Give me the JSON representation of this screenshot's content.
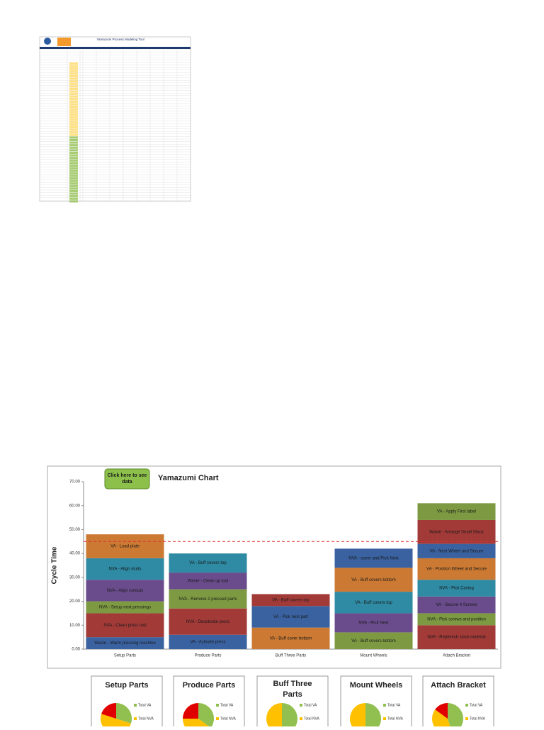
{
  "spreadsheet": {
    "title": "Yamazumi Process Modeling Tool"
  },
  "chart_data": [
    {
      "type": "stacked-bar",
      "title": "Yamazumi Chart",
      "button": "Click here to see data",
      "y_label": "Cycle Time",
      "categories": [
        "Setup Parts",
        "Produce Parts",
        "Buff Three Parts",
        "Mount Wheels",
        "Attach Bracket"
      ],
      "stacks": [
        [
          {
            "label": "Waste - Warm pressing machine",
            "value": 5,
            "color": "#3a62a0"
          },
          {
            "label": "NVA - Clean press tool",
            "value": 10,
            "color": "#a23a38"
          },
          {
            "label": "NVA - Setup next pressings",
            "value": 5,
            "color": "#7d9a42"
          },
          {
            "label": "NVA - Align runouts",
            "value": 9,
            "color": "#6a4c8c"
          },
          {
            "label": "NVA - Align studs",
            "value": 9,
            "color": "#2f8aa3"
          },
          {
            "label": "VA - Load plate",
            "value": 10,
            "color": "#cc7a33"
          }
        ],
        [
          {
            "label": "VA - Activate press",
            "value": 6,
            "color": "#3a62a0"
          },
          {
            "label": "NVA - Deactivate press",
            "value": 11,
            "color": "#a23a38"
          },
          {
            "label": "NVA - Remove 2 pressed parts",
            "value": 8,
            "color": "#7d9a42"
          },
          {
            "label": "Waste - Clean up tool",
            "value": 7,
            "color": "#6a4c8c"
          },
          {
            "label": "VA - Buff covers top",
            "value": 8,
            "color": "#2f8aa3"
          }
        ],
        [
          {
            "label": "VA - Buff cover bottom",
            "value": 9,
            "color": "#cc7a33"
          },
          {
            "label": "VA - Pick next part",
            "value": 9,
            "color": "#3a62a0"
          },
          {
            "label": "VA - Buff covers top",
            "value": 5,
            "color": "#a23a38"
          }
        ],
        [
          {
            "label": "VA - Buff covers bottom",
            "value": 7,
            "color": "#7d9a42"
          },
          {
            "label": "NVA - Pick Next",
            "value": 8,
            "color": "#6a4c8c"
          },
          {
            "label": "VA - Buff covers top",
            "value": 9,
            "color": "#2f8aa3"
          },
          {
            "label": "VA - Buff covers bottom",
            "value": 10,
            "color": "#cc7a33"
          },
          {
            "label": "NVA - cover and Pick Next",
            "value": 8,
            "color": "#3a62a0"
          }
        ],
        [
          {
            "label": "NVA - Replenish stock material",
            "value": 10,
            "color": "#a23a38"
          },
          {
            "label": "NVA - Pick screws and position",
            "value": 5,
            "color": "#7d9a42"
          },
          {
            "label": "VA - Secure 4 Screws",
            "value": 7,
            "color": "#6a4c8c"
          },
          {
            "label": "NVA - Pick Casing",
            "value": 7,
            "color": "#2f8aa3"
          },
          {
            "label": "VA - Position Wheel and Secure",
            "value": 9,
            "color": "#cc7a33"
          },
          {
            "label": "VA - Nest Wheel and Secure",
            "value": 6,
            "color": "#3a62a0"
          },
          {
            "label": "Waste - Arrange Small Stack",
            "value": 10,
            "color": "#a23a38"
          },
          {
            "label": "VA - Apply First label",
            "value": 7,
            "color": "#7d9a42"
          }
        ]
      ],
      "takt": 45,
      "takt_color": "#e03030",
      "ylim": [
        0,
        70
      ],
      "yticks": [
        {
          "value": 0,
          "label": "0.00"
        },
        {
          "value": 10,
          "label": "10.00"
        },
        {
          "value": 20,
          "label": "20.00"
        },
        {
          "value": 30,
          "label": "30.00"
        },
        {
          "value": 40,
          "label": "40.00"
        },
        {
          "value": 50,
          "label": "50.00"
        },
        {
          "value": 60,
          "label": "60.00"
        },
        {
          "value": 70,
          "label": "70.00"
        }
      ]
    },
    {
      "type": "pie",
      "title": "Setup Parts",
      "labels": [
        "Total VA",
        "Total NVA",
        null
      ],
      "values": [
        30,
        50,
        20
      ],
      "colors": [
        "#92c050",
        "#ffc000",
        "#e00000"
      ]
    },
    {
      "type": "pie",
      "title": "Produce Parts",
      "labels": [
        "Total VA",
        "Total NVA",
        null
      ],
      "values": [
        35,
        40,
        25
      ],
      "colors": [
        "#92c050",
        "#ffc000",
        "#e00000"
      ]
    },
    {
      "type": "pie",
      "title": "Buff Three Parts",
      "labels": [
        "Total VA",
        "Total NVA"
      ],
      "values": [
        50,
        50
      ],
      "colors": [
        "#92c050",
        "#ffc000"
      ]
    },
    {
      "type": "pie",
      "title": "Mount Wheels",
      "labels": [
        "Total VA",
        "Total NVA"
      ],
      "values": [
        50,
        50
      ],
      "colors": [
        "#92c050",
        "#ffc000"
      ]
    },
    {
      "type": "pie",
      "title": "Attach Bracket",
      "labels": [
        "Total VA",
        "Total NVA",
        null
      ],
      "values": [
        45,
        40,
        15
      ],
      "colors": [
        "#92c050",
        "#ffc000",
        "#e00000"
      ]
    }
  ]
}
